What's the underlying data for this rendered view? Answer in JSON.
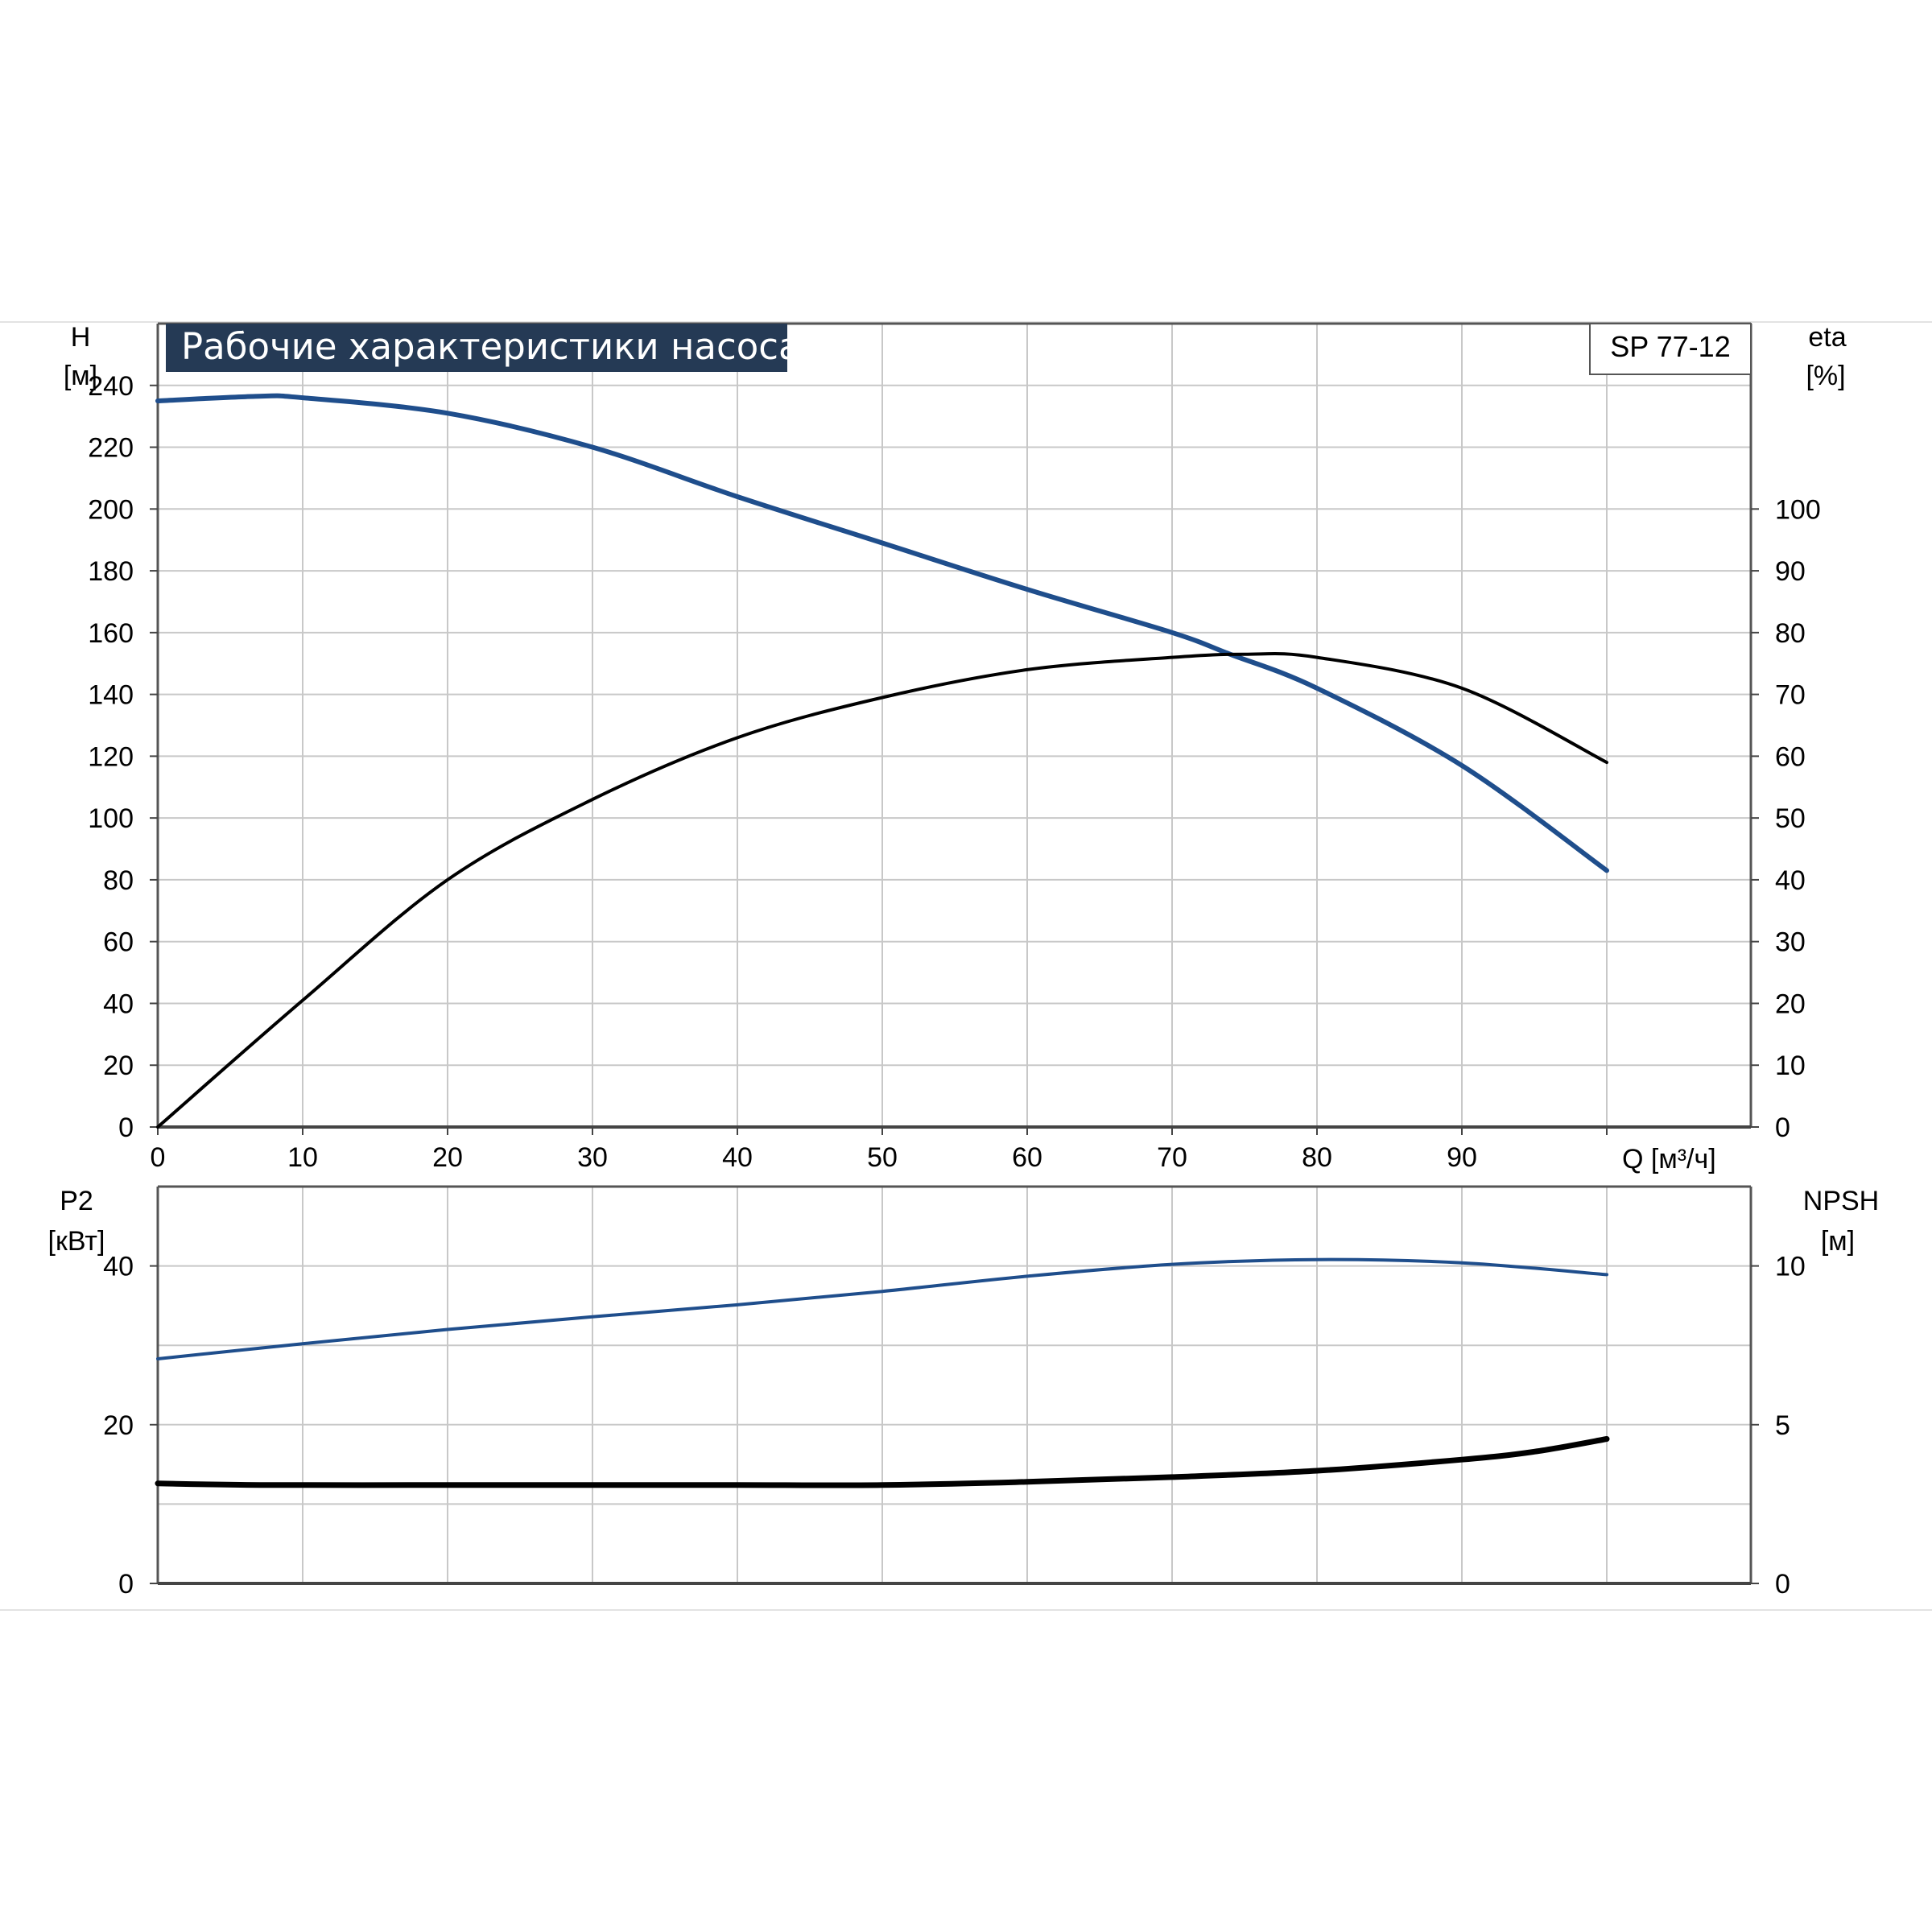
{
  "chart_data": [
    {
      "type": "line",
      "title": "Рабочие характеристики насоса",
      "model_label": "SP 77-12",
      "x_axis": {
        "label": "Q [м³/ч]",
        "range": [
          0,
          110
        ],
        "ticks": [
          0,
          10,
          20,
          30,
          40,
          50,
          60,
          70,
          80,
          90
        ]
      },
      "y_left": {
        "label_line1": "H",
        "label_line2": "[м]",
        "range": [
          0,
          260
        ],
        "ticks": [
          0,
          20,
          40,
          60,
          80,
          100,
          120,
          140,
          160,
          180,
          200,
          220,
          240
        ]
      },
      "y_right": {
        "label_line1": "eta",
        "label_line2": "[%]",
        "range": [
          0,
          130
        ],
        "ticks": [
          0,
          10,
          20,
          30,
          40,
          50,
          60,
          70,
          80,
          90,
          100
        ]
      },
      "grid": true,
      "series": [
        {
          "key": "head",
          "axis": "left",
          "color": "#1f4e8c",
          "x": [
            0,
            7,
            10,
            20,
            30,
            40,
            50,
            60,
            70,
            74,
            80,
            90,
            100
          ],
          "y": [
            235,
            236.5,
            236,
            231,
            220,
            204,
            189,
            174,
            160,
            153,
            142,
            117,
            83
          ]
        },
        {
          "key": "efficiency",
          "axis": "right",
          "color": "#000000",
          "x": [
            0,
            10,
            20,
            30,
            40,
            50,
            60,
            70,
            75,
            80,
            90,
            100
          ],
          "y": [
            0,
            20.5,
            40,
            53,
            63,
            69.5,
            74,
            76,
            76.5,
            76,
            71,
            59
          ]
        }
      ]
    },
    {
      "type": "line",
      "x_axis": {
        "range": [
          0,
          110
        ]
      },
      "y_left": {
        "label_line1": "P2",
        "label_line2": "[кВт]",
        "range": [
          0,
          50
        ],
        "ticks": [
          0,
          20,
          40
        ]
      },
      "y_right": {
        "label_line1": "NPSH",
        "label_line2": "[м]",
        "range": [
          0,
          12.5
        ],
        "ticks": [
          0,
          5,
          10
        ]
      },
      "grid": true,
      "series": [
        {
          "key": "power",
          "axis": "left",
          "color": "#1f4e8c",
          "x": [
            0,
            10,
            20,
            30,
            40,
            50,
            60,
            70,
            80,
            90,
            100
          ],
          "y": [
            28.3,
            30.2,
            32,
            33.6,
            35.1,
            36.8,
            38.7,
            40.2,
            40.8,
            40.4,
            38.9
          ]
        },
        {
          "key": "npsh",
          "axis": "right",
          "color": "#000000",
          "x": [
            0,
            7,
            20,
            30,
            40,
            50,
            60,
            70,
            80,
            90,
            95,
            100
          ],
          "y": [
            3.15,
            3.1,
            3.1,
            3.1,
            3.1,
            3.1,
            3.2,
            3.35,
            3.55,
            3.9,
            4.15,
            4.55
          ]
        }
      ]
    }
  ]
}
